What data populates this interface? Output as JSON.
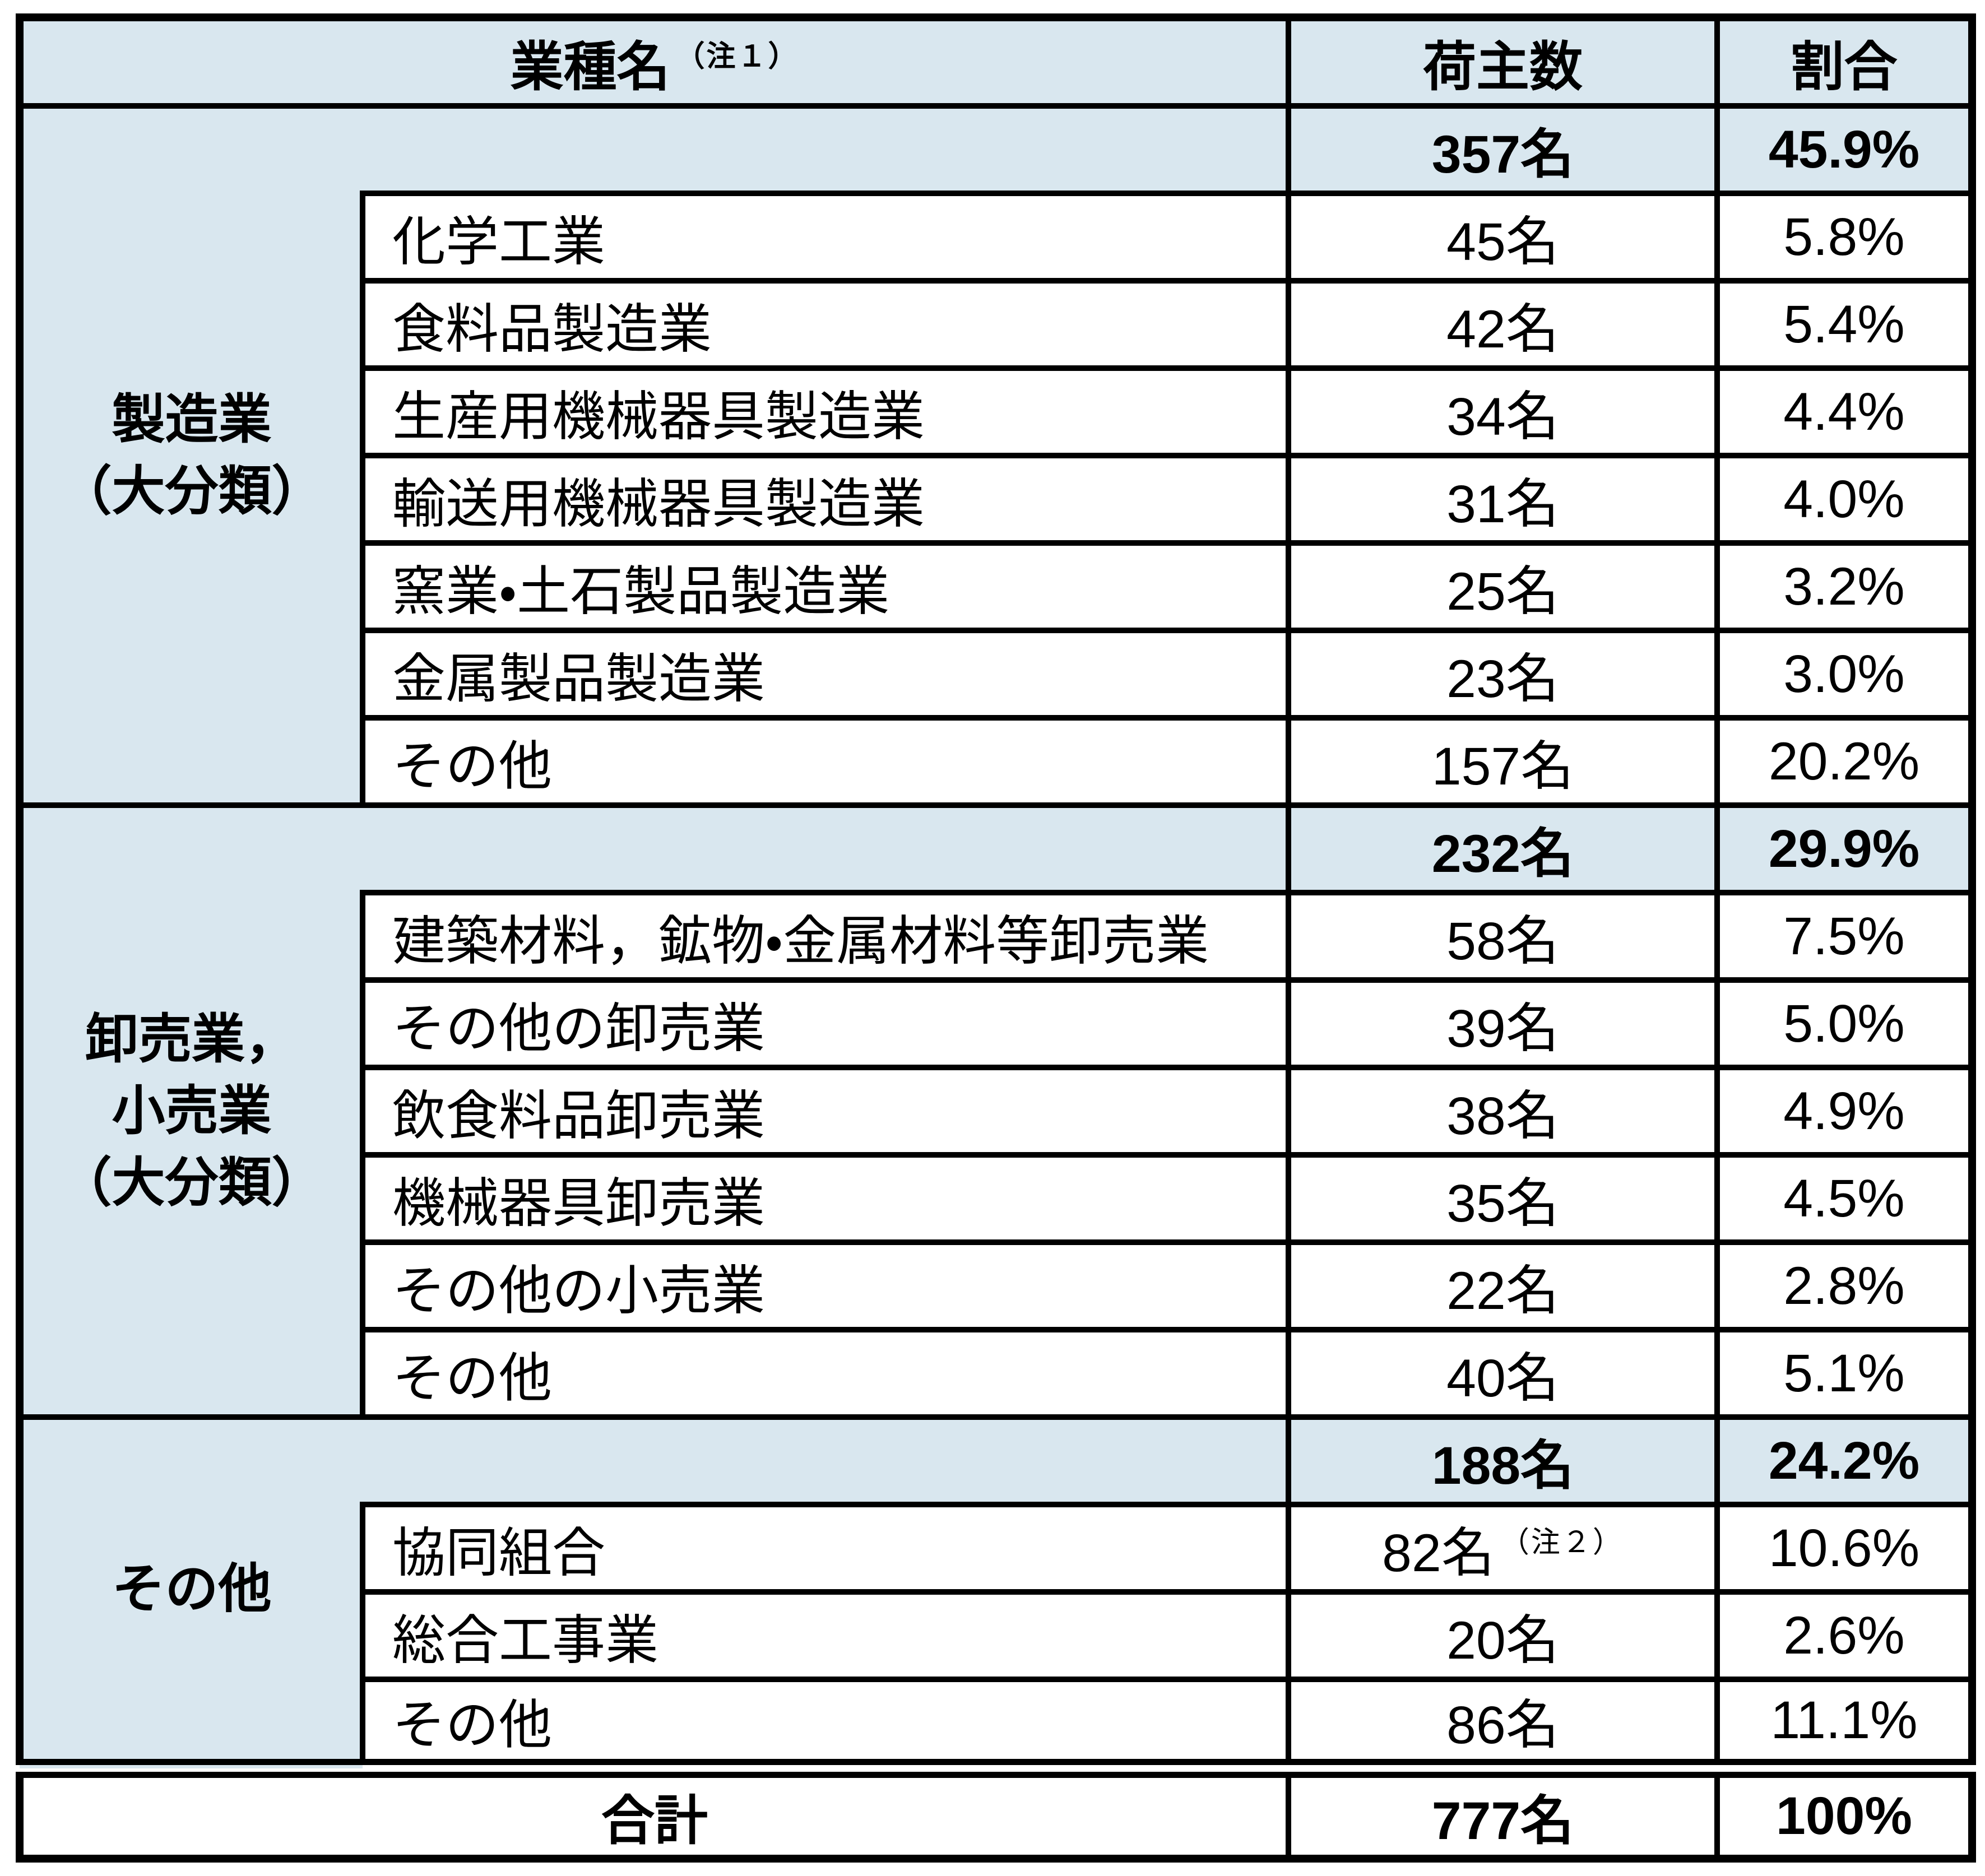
{
  "header": {
    "industry": "業種名",
    "industry_note": "（注１）",
    "shippers": "荷主数",
    "share": "割合"
  },
  "groups": [
    {
      "label": "製造業\n（大分類）",
      "summary": {
        "shippers": "357名",
        "share": "45.9%"
      },
      "rows": [
        {
          "label": "化学工業",
          "shippers": "45名",
          "share": "5.8%"
        },
        {
          "label": "食料品製造業",
          "shippers": "42名",
          "share": "5.4%"
        },
        {
          "label": "生産用機械器具製造業",
          "shippers": "34名",
          "share": "4.4%"
        },
        {
          "label": "輸送用機械器具製造業",
          "shippers": "31名",
          "share": "4.0%"
        },
        {
          "label": "窯業・土石製品製造業",
          "shippers": "25名",
          "share": "3.2%"
        },
        {
          "label": "金属製品製造業",
          "shippers": "23名",
          "share": "3.0%"
        },
        {
          "label": "その他",
          "shippers": "157名",
          "share": "20.2%"
        }
      ]
    },
    {
      "label": "卸売業，\n小売業\n（大分類）",
      "summary": {
        "shippers": "232名",
        "share": "29.9%"
      },
      "rows": [
        {
          "label": "建築材料，鉱物・金属材料等卸売業",
          "shippers": "58名",
          "share": "7.5%"
        },
        {
          "label": "その他の卸売業",
          "shippers": "39名",
          "share": "5.0%"
        },
        {
          "label": "飲食料品卸売業",
          "shippers": "38名",
          "share": "4.9%"
        },
        {
          "label": "機械器具卸売業",
          "shippers": "35名",
          "share": "4.5%"
        },
        {
          "label": "その他の小売業",
          "shippers": "22名",
          "share": "2.8%"
        },
        {
          "label": "その他",
          "shippers": "40名",
          "share": "5.1%"
        }
      ]
    },
    {
      "label": "その他",
      "summary": {
        "shippers": "188名",
        "share": "24.2%"
      },
      "rows": [
        {
          "label": "協同組合",
          "shippers": "82名",
          "note": "（注２）",
          "share": "10.6%"
        },
        {
          "label": "総合工事業",
          "shippers": "20名",
          "share": "2.6%"
        },
        {
          "label": "その他",
          "shippers": "86名",
          "share": "11.1%"
        }
      ]
    }
  ],
  "total": {
    "label": "合計",
    "shippers": "777名",
    "share": "100%"
  },
  "colors": {
    "band": "#d9e7ef",
    "border": "#000000"
  },
  "chart_data": {
    "type": "table",
    "title": "",
    "columns": [
      "業種名（注１）",
      "荷主数",
      "割合"
    ],
    "rows": [
      [
        "製造業（大分類）",
        "357名",
        "45.9%"
      ],
      [
        "化学工業",
        "45名",
        "5.8%"
      ],
      [
        "食料品製造業",
        "42名",
        "5.4%"
      ],
      [
        "生産用機械器具製造業",
        "34名",
        "4.4%"
      ],
      [
        "輸送用機械器具製造業",
        "31名",
        "4.0%"
      ],
      [
        "窯業・土石製品製造業",
        "25名",
        "3.2%"
      ],
      [
        "金属製品製造業",
        "23名",
        "3.0%"
      ],
      [
        "その他（製造業）",
        "157名",
        "20.2%"
      ],
      [
        "卸売業，小売業（大分類）",
        "232名",
        "29.9%"
      ],
      [
        "建築材料，鉱物・金属材料等卸売業",
        "58名",
        "7.5%"
      ],
      [
        "その他の卸売業",
        "39名",
        "5.0%"
      ],
      [
        "飲食料品卸売業",
        "38名",
        "4.9%"
      ],
      [
        "機械器具卸売業",
        "35名",
        "4.5%"
      ],
      [
        "その他の小売業",
        "22名",
        "2.8%"
      ],
      [
        "その他（卸売業，小売業）",
        "40名",
        "5.1%"
      ],
      [
        "その他",
        "188名",
        "24.2%"
      ],
      [
        "協同組合（注２）",
        "82名",
        "10.6%"
      ],
      [
        "総合工事業",
        "20名",
        "2.6%"
      ],
      [
        "その他（その他）",
        "86名",
        "11.1%"
      ],
      [
        "合計",
        "777名",
        "100%"
      ]
    ]
  }
}
